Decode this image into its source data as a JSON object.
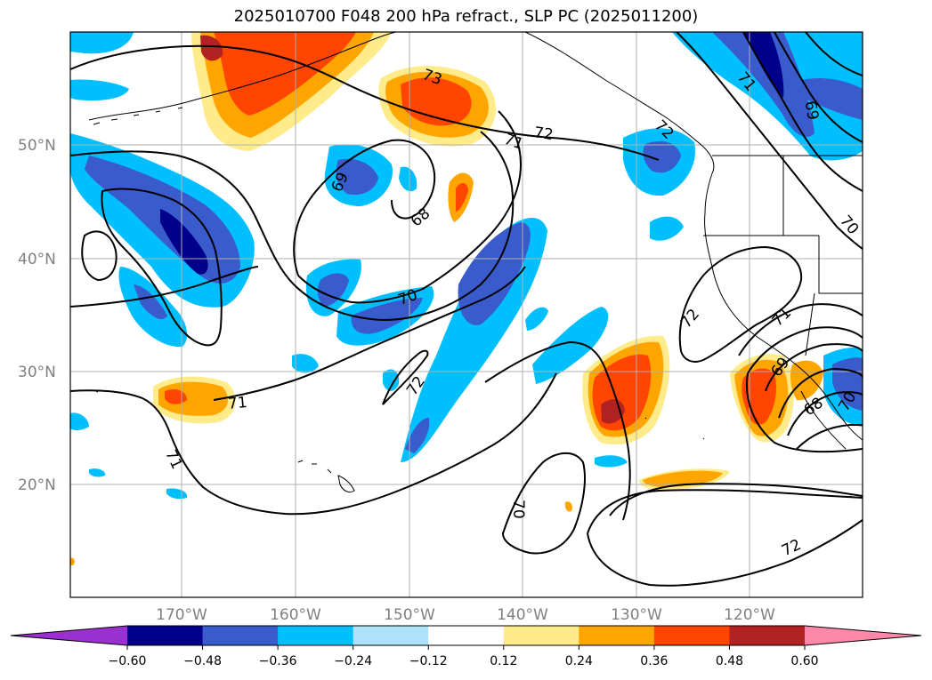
{
  "title": "2025010700 F048 200 hPa refract., SLP PC (2025011200)",
  "latitudes": [
    {
      "label": "50°N",
      "lat": 50
    },
    {
      "label": "40°N",
      "lat": 40
    },
    {
      "label": "30°N",
      "lat": 30
    },
    {
      "label": "20°N",
      "lat": 20
    }
  ],
  "longitudes": [
    {
      "label": "170°W",
      "lon": -170
    },
    {
      "label": "160°W",
      "lon": -160
    },
    {
      "label": "150°W",
      "lon": -150
    },
    {
      "label": "140°W",
      "lon": -140
    },
    {
      "label": "130°W",
      "lon": -130
    },
    {
      "label": "120°W",
      "lon": -120
    }
  ],
  "colorbar": {
    "ticks": [
      "−0.60",
      "−0.48",
      "−0.36",
      "−0.24",
      "−0.12",
      "0.12",
      "0.24",
      "0.36",
      "0.48",
      "0.60"
    ],
    "colors": [
      "#9b30d0",
      "#00008b",
      "#3a5bcc",
      "#00bfff",
      "#aee2fa",
      "#ffffff",
      "#ffeb8a",
      "#ffa500",
      "#ff4500",
      "#b22222",
      "#ff88aa"
    ]
  },
  "contour_labels": [
    "73",
    "72",
    "71",
    "69",
    "68",
    "70",
    "71",
    "72",
    "72",
    "71",
    "70",
    "69",
    "68",
    "70",
    "71",
    "71",
    "69",
    "72",
    "70",
    "72"
  ]
}
